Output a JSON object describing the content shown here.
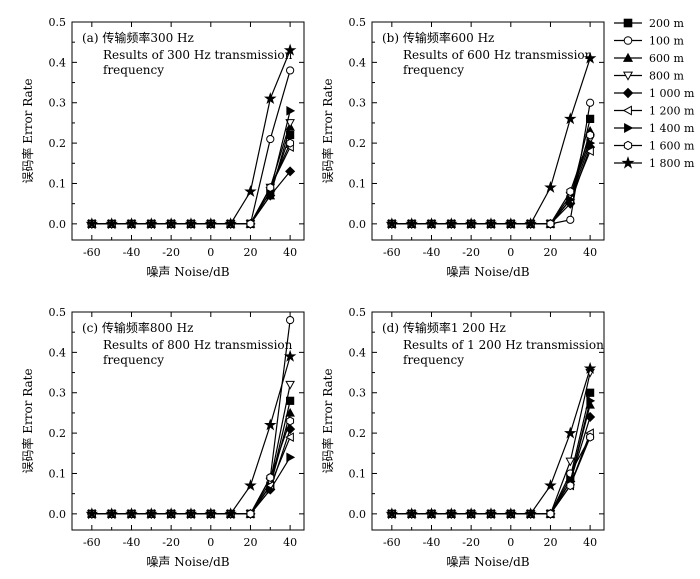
{
  "chart_data": [
    {
      "type": "line",
      "panel_label": "(a) 传输频率300 Hz",
      "subtitle_lines": [
        "Results of 300 Hz transmission",
        "frequency"
      ],
      "xlabel": "噪声 Noise/dB",
      "ylabel": "误码率 Error Rate",
      "xlim": [
        -70,
        47
      ],
      "ylim": [
        -0.04,
        0.5
      ],
      "xticks": [
        "-60",
        "-40",
        "-20",
        "0",
        "20",
        "40"
      ],
      "yticks": [
        "0.0",
        "0.1",
        "0.2",
        "0.3",
        "0.4",
        "0.5"
      ],
      "x": [
        -60,
        -50,
        -40,
        -30,
        -20,
        -10,
        0,
        10,
        20,
        30,
        40
      ],
      "series": [
        {
          "name": "200 m",
          "values": [
            0,
            0,
            0,
            0,
            0,
            0,
            0,
            0,
            0,
            0.08,
            0.22
          ]
        },
        {
          "name": "100 m",
          "values": [
            0,
            0,
            0,
            0,
            0,
            0,
            0,
            0,
            0,
            0.21,
            0.38
          ]
        },
        {
          "name": "600 m",
          "values": [
            0,
            0,
            0,
            0,
            0,
            0,
            0,
            0,
            0,
            0.07,
            0.24
          ]
        },
        {
          "name": "800 m",
          "values": [
            0,
            0,
            0,
            0,
            0,
            0,
            0,
            0,
            0,
            0.09,
            0.25
          ]
        },
        {
          "name": "1 000 m",
          "values": [
            0,
            0,
            0,
            0,
            0,
            0,
            0,
            0,
            0,
            0.07,
            0.13
          ]
        },
        {
          "name": "1 200 m",
          "values": [
            0,
            0,
            0,
            0,
            0,
            0,
            0,
            0,
            0,
            0.09,
            0.19
          ]
        },
        {
          "name": "1 400 m",
          "values": [
            0,
            0,
            0,
            0,
            0,
            0,
            0,
            0,
            0,
            0.08,
            0.28
          ]
        },
        {
          "name": "1 600 m",
          "values": [
            0,
            0,
            0,
            0,
            0,
            0,
            0,
            0,
            0,
            0.09,
            0.2
          ]
        },
        {
          "name": "1 800 m",
          "values": [
            0,
            0,
            0,
            0,
            0,
            0,
            0,
            0,
            0.08,
            0.31,
            0.43
          ]
        }
      ]
    },
    {
      "type": "line",
      "panel_label": "(b) 传输频率600 Hz",
      "subtitle_lines": [
        "Results of 600 Hz transmission",
        "frequency"
      ],
      "xlabel": "噪声 Noise/dB",
      "ylabel": "误码率 Error Rate",
      "xlim": [
        -70,
        47
      ],
      "ylim": [
        -0.04,
        0.5
      ],
      "xticks": [
        "-60",
        "-40",
        "-20",
        "0",
        "20",
        "40"
      ],
      "yticks": [
        "0.0",
        "0.1",
        "0.2",
        "0.3",
        "0.4",
        "0.5"
      ],
      "x": [
        -60,
        -50,
        -40,
        -30,
        -20,
        -10,
        0,
        10,
        20,
        30,
        40
      ],
      "series": [
        {
          "name": "200 m",
          "values": [
            0,
            0,
            0,
            0,
            0,
            0,
            0,
            0,
            0,
            0.06,
            0.26
          ]
        },
        {
          "name": "100 m",
          "values": [
            0,
            0,
            0,
            0,
            0,
            0,
            0,
            0,
            0,
            0.01,
            0.3
          ]
        },
        {
          "name": "600 m",
          "values": [
            0,
            0,
            0,
            0,
            0,
            0,
            0,
            0,
            0,
            0.06,
            0.23
          ]
        },
        {
          "name": "800 m",
          "values": [
            0,
            0,
            0,
            0,
            0,
            0,
            0,
            0,
            0,
            0.07,
            0.21
          ]
        },
        {
          "name": "1 000 m",
          "values": [
            0,
            0,
            0,
            0,
            0,
            0,
            0,
            0,
            0,
            0.05,
            0.19
          ]
        },
        {
          "name": "1 200 m",
          "values": [
            0,
            0,
            0,
            0,
            0,
            0,
            0,
            0,
            0,
            0.06,
            0.18
          ]
        },
        {
          "name": "1 400 m",
          "values": [
            0,
            0,
            0,
            0,
            0,
            0,
            0,
            0,
            0,
            0.06,
            0.2
          ]
        },
        {
          "name": "1 600 m",
          "values": [
            0,
            0,
            0,
            0,
            0,
            0,
            0,
            0,
            0,
            0.08,
            0.22
          ]
        },
        {
          "name": "1 800 m",
          "values": [
            0,
            0,
            0,
            0,
            0,
            0,
            0,
            0,
            0.09,
            0.26,
            0.41
          ]
        }
      ]
    },
    {
      "type": "line",
      "panel_label": "(c) 传输频率800 Hz",
      "subtitle_lines": [
        "Results of 800 Hz transmission",
        "frequency"
      ],
      "xlabel": "噪声 Noise/dB",
      "ylabel": "误码率 Error Rate",
      "xlim": [
        -70,
        47
      ],
      "ylim": [
        -0.04,
        0.5
      ],
      "xticks": [
        "-60",
        "-40",
        "-20",
        "0",
        "20",
        "40"
      ],
      "yticks": [
        "0.0",
        "0.1",
        "0.2",
        "0.3",
        "0.4",
        "0.5"
      ],
      "x": [
        -60,
        -50,
        -40,
        -30,
        -20,
        -10,
        0,
        10,
        20,
        30,
        40
      ],
      "series": [
        {
          "name": "200 m",
          "values": [
            0,
            0,
            0,
            0,
            0,
            0,
            0,
            0,
            0,
            0.07,
            0.28
          ]
        },
        {
          "name": "100 m",
          "values": [
            0,
            0,
            0,
            0,
            0,
            0,
            0,
            0,
            0,
            0.09,
            0.48
          ]
        },
        {
          "name": "600 m",
          "values": [
            0,
            0,
            0,
            0,
            0,
            0,
            0,
            0,
            0,
            0.07,
            0.25
          ]
        },
        {
          "name": "800 m",
          "values": [
            0,
            0,
            0,
            0,
            0,
            0,
            0,
            0,
            0,
            0.08,
            0.32
          ]
        },
        {
          "name": "1 000 m",
          "values": [
            0,
            0,
            0,
            0,
            0,
            0,
            0,
            0,
            0,
            0.06,
            0.21
          ]
        },
        {
          "name": "1 200 m",
          "values": [
            0,
            0,
            0,
            0,
            0,
            0,
            0,
            0,
            0,
            0.07,
            0.19
          ]
        },
        {
          "name": "1 400 m",
          "values": [
            0,
            0,
            0,
            0,
            0,
            0,
            0,
            0,
            0,
            0.06,
            0.14
          ]
        },
        {
          "name": "1 600 m",
          "values": [
            0,
            0,
            0,
            0,
            0,
            0,
            0,
            0,
            0,
            0.09,
            0.23
          ]
        },
        {
          "name": "1 800 m",
          "values": [
            0,
            0,
            0,
            0,
            0,
            0,
            0,
            0,
            0.07,
            0.22,
            0.39
          ]
        }
      ]
    },
    {
      "type": "line",
      "panel_label": "(d) 传输频率1 200 Hz",
      "subtitle_lines": [
        "Results of 1 200 Hz transmission",
        "frequency"
      ],
      "xlabel": "噪声 Noise/dB",
      "ylabel": "误码率 Error Rate",
      "xlim": [
        -70,
        47
      ],
      "ylim": [
        -0.04,
        0.5
      ],
      "xticks": [
        "-60",
        "-40",
        "-20",
        "0",
        "20",
        "40"
      ],
      "yticks": [
        "0.0",
        "0.1",
        "0.2",
        "0.3",
        "0.4",
        "0.5"
      ],
      "x": [
        -60,
        -50,
        -40,
        -30,
        -20,
        -10,
        0,
        10,
        20,
        30,
        40
      ],
      "series": [
        {
          "name": "200 m",
          "values": [
            0,
            0,
            0,
            0,
            0,
            0,
            0,
            0,
            0,
            0.09,
            0.3
          ]
        },
        {
          "name": "100 m",
          "values": [
            0,
            0,
            0,
            0,
            0,
            0,
            0,
            0,
            0,
            0.1,
            0.19
          ]
        },
        {
          "name": "600 m",
          "values": [
            0,
            0,
            0,
            0,
            0,
            0,
            0,
            0,
            0,
            0.08,
            0.27
          ]
        },
        {
          "name": "800 m",
          "values": [
            0,
            0,
            0,
            0,
            0,
            0,
            0,
            0,
            0,
            0.13,
            0.35
          ]
        },
        {
          "name": "1 000 m",
          "values": [
            0,
            0,
            0,
            0,
            0,
            0,
            0,
            0,
            0,
            0.08,
            0.24
          ]
        },
        {
          "name": "1 200 m",
          "values": [
            0,
            0,
            0,
            0,
            0,
            0,
            0,
            0,
            0,
            0.07,
            0.2
          ]
        },
        {
          "name": "1 400 m",
          "values": [
            0,
            0,
            0,
            0,
            0,
            0,
            0,
            0,
            0,
            0.08,
            0.28
          ]
        },
        {
          "name": "1 600 m",
          "values": [
            0,
            0,
            0,
            0,
            0,
            0,
            0,
            0,
            0,
            0.07,
            0.19
          ]
        },
        {
          "name": "1 800 m",
          "values": [
            0,
            0,
            0,
            0,
            0,
            0,
            0,
            0,
            0.07,
            0.2,
            0.36
          ]
        }
      ]
    }
  ],
  "legend": {
    "placement": "top-right",
    "items": [
      {
        "label": "200 m",
        "marker": "square-filled"
      },
      {
        "label": "100 m",
        "marker": "circle-open"
      },
      {
        "label": "600 m",
        "marker": "triangle-up-filled"
      },
      {
        "label": "800 m",
        "marker": "triangle-down-open"
      },
      {
        "label": "1 000 m",
        "marker": "diamond-filled"
      },
      {
        "label": "1 200 m",
        "marker": "triangle-left-open"
      },
      {
        "label": "1 400 m",
        "marker": "triangle-right-filled"
      },
      {
        "label": "1 600 m",
        "marker": "hexagon-open"
      },
      {
        "label": "1 800 m",
        "marker": "star-filled"
      }
    ]
  },
  "colors": {
    "line": "#000000",
    "background": "#ffffff"
  }
}
